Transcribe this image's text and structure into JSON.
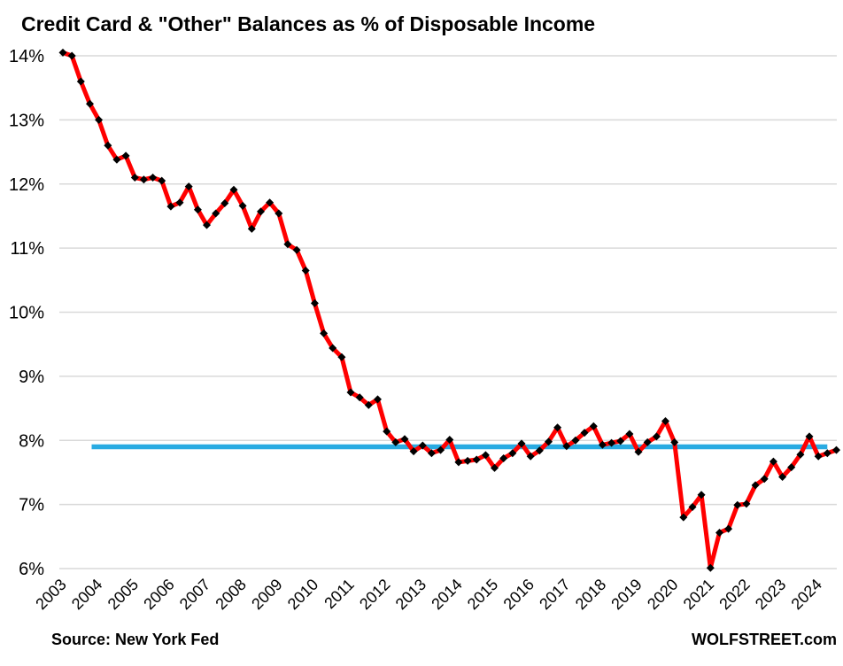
{
  "title": "Credit Card & \"Other\" Balances as % of Disposable Income",
  "footer": {
    "source_note": "Source: New York Fed",
    "branding": "WOLFSTREET.com"
  },
  "colors": {
    "series_line": "#FF0000",
    "marker": "#000000",
    "reference_line": "#29ABE2",
    "gridline": "#D9D9D9",
    "text": "#000000",
    "background": "#FFFFFF"
  },
  "chart_data": {
    "type": "line",
    "title": "Credit Card & \"Other\" Balances as % of Disposable Income",
    "xlabel": "",
    "ylabel": "",
    "frequency": "quarterly",
    "x_range": "2003 Q1 to 2024 Q3",
    "x_tick_labels": [
      "2003",
      "2004",
      "2005",
      "2006",
      "2007",
      "2008",
      "2009",
      "2010",
      "2011",
      "2012",
      "2013",
      "2014",
      "2015",
      "2016",
      "2017",
      "2018",
      "2019",
      "2020",
      "2021",
      "2022",
      "2023",
      "2024"
    ],
    "points_per_x_tick": 4,
    "ylim": [
      6,
      14
    ],
    "y_ticks": [
      6,
      7,
      8,
      9,
      10,
      11,
      12,
      13,
      14
    ],
    "y_tick_labels": [
      "6%",
      "7%",
      "8%",
      "9%",
      "10%",
      "11%",
      "12%",
      "13%",
      "14%"
    ],
    "grid": "horizontal",
    "legend": "none",
    "series": [
      {
        "name": "credit-card-and-other-balances-pct-of-disposable-income",
        "color": "#FF0000",
        "marker": "diamond",
        "marker_color": "#000000",
        "values": [
          14.05,
          14.0,
          13.6,
          13.25,
          13.0,
          12.6,
          12.38,
          12.44,
          12.1,
          12.07,
          12.1,
          12.05,
          11.65,
          11.71,
          11.96,
          11.6,
          11.36,
          11.54,
          11.7,
          11.91,
          11.66,
          11.3,
          11.57,
          11.71,
          11.54,
          11.06,
          10.97,
          10.65,
          10.14,
          9.67,
          9.44,
          9.3,
          8.75,
          8.67,
          8.55,
          8.64,
          8.14,
          7.97,
          8.02,
          7.83,
          7.92,
          7.8,
          7.85,
          8.01,
          7.66,
          7.68,
          7.7,
          7.77,
          7.57,
          7.72,
          7.8,
          7.95,
          7.75,
          7.84,
          7.98,
          8.2,
          7.91,
          8.0,
          8.12,
          8.22,
          7.93,
          7.96,
          7.99,
          8.1,
          7.82,
          7.97,
          8.06,
          8.3,
          7.97,
          6.8,
          6.96,
          7.15,
          6.01,
          6.56,
          6.62,
          6.99,
          7.01,
          7.3,
          7.4,
          7.67,
          7.43,
          7.58,
          7.78,
          8.06,
          7.75,
          7.8,
          7.85
        ]
      }
    ],
    "reference_line": {
      "name": "pre-pandemic-normal-level",
      "value": 7.9,
      "color": "#29ABE2",
      "start_index": 3.2,
      "end_index": 85
    }
  }
}
